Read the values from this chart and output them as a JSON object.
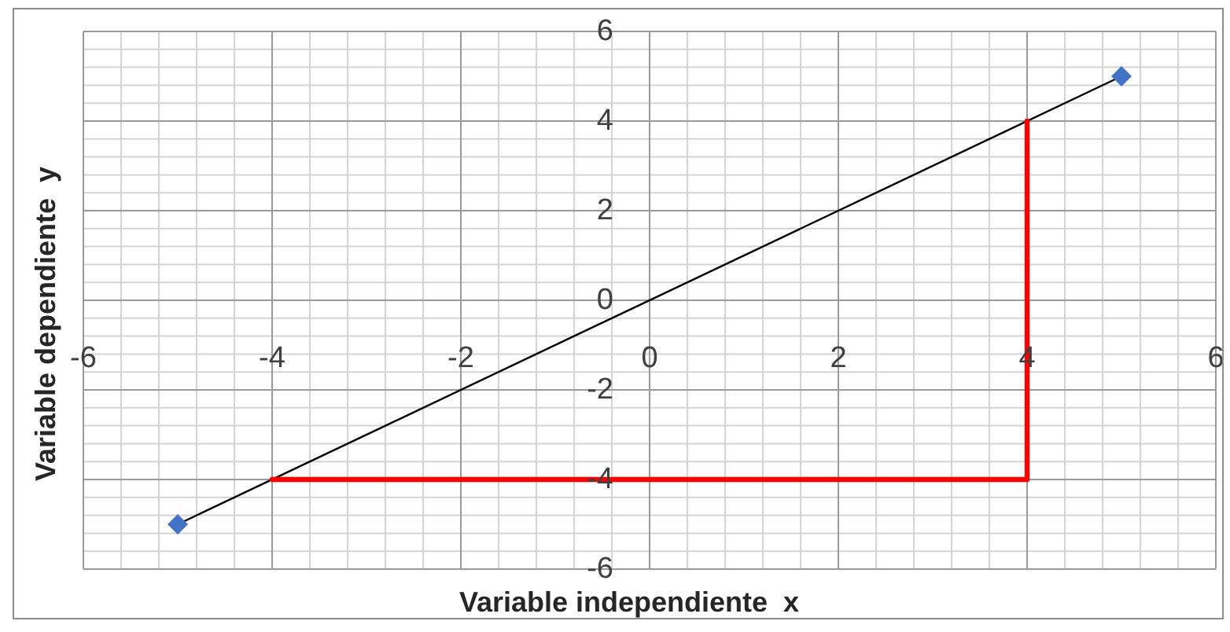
{
  "chart_data": {
    "type": "line",
    "xlabel": "Variable independiente  x",
    "ylabel": "Variable dependiente  y",
    "xlim": [
      -6,
      6
    ],
    "ylim": [
      -6,
      6
    ],
    "xticks": [
      -6,
      {
        "value": -5.6,
        "label": null
      },
      {
        "value": -5.2,
        "label": null
      },
      {
        "value": -4.8,
        "label": null
      },
      {
        "value": -4.4,
        "label": null
      },
      -4,
      {
        "value": -3.6,
        "label": null
      },
      {
        "value": -3.2,
        "label": null
      },
      {
        "value": -2.8,
        "label": null
      },
      {
        "value": -2.4,
        "label": null
      },
      -2,
      {
        "value": -1.6,
        "label": null
      },
      {
        "value": -1.2,
        "label": null
      },
      {
        "value": -0.8,
        "label": null
      },
      {
        "value": -0.4,
        "label": null
      },
      0,
      {
        "value": 0.4,
        "label": null
      },
      {
        "value": 0.8,
        "label": null
      },
      {
        "value": 1.2,
        "label": null
      },
      {
        "value": 1.6,
        "label": null
      },
      2,
      {
        "value": 2.4,
        "label": null
      },
      {
        "value": 2.8,
        "label": null
      },
      {
        "value": 3.2,
        "label": null
      },
      {
        "value": 3.6,
        "label": null
      },
      4,
      {
        "value": 4.4,
        "label": null
      },
      {
        "value": 4.8,
        "label": null
      },
      {
        "value": 5.2,
        "label": null
      },
      {
        "value": 5.6,
        "label": null
      },
      6
    ],
    "yticks": [
      -6,
      {
        "value": -5.6,
        "label": null
      },
      {
        "value": -5.2,
        "label": null
      },
      {
        "value": -4.8,
        "label": null
      },
      {
        "value": -4.4,
        "label": null
      },
      -4,
      {
        "value": -3.6,
        "label": null
      },
      {
        "value": -3.2,
        "label": null
      },
      {
        "value": -2.8,
        "label": null
      },
      {
        "value": -2.4,
        "label": null
      },
      -2,
      {
        "value": -1.6,
        "label": null
      },
      {
        "value": -1.2,
        "label": null
      },
      {
        "value": -0.8,
        "label": null
      },
      {
        "value": -0.4,
        "label": null
      },
      0,
      {
        "value": 0.4,
        "label": null
      },
      {
        "value": 0.8,
        "label": null
      },
      {
        "value": 1.2,
        "label": null
      },
      {
        "value": 1.6,
        "label": null
      },
      2,
      {
        "value": 2.4,
        "label": null
      },
      {
        "value": 2.8,
        "label": null
      },
      {
        "value": 3.2,
        "label": null
      },
      {
        "value": 3.6,
        "label": null
      },
      4,
      {
        "value": 4.4,
        "label": null
      },
      {
        "value": 4.8,
        "label": null
      },
      {
        "value": 5.2,
        "label": null
      },
      {
        "value": 5.6,
        "label": null
      },
      6
    ],
    "grid": true,
    "marker": "diamond",
    "series": [
      {
        "color": "#000000",
        "colors": [
          "#4472c4",
          "#4472c4"
        ],
        "x": [
          -5,
          5
        ],
        "values": [
          -5,
          5
        ]
      },
      {
        "color": "#ff0000",
        "marker": "none",
        "x": [
          -4,
          4,
          4
        ],
        "values": [
          -4,
          -4,
          4
        ]
      }
    ]
  }
}
